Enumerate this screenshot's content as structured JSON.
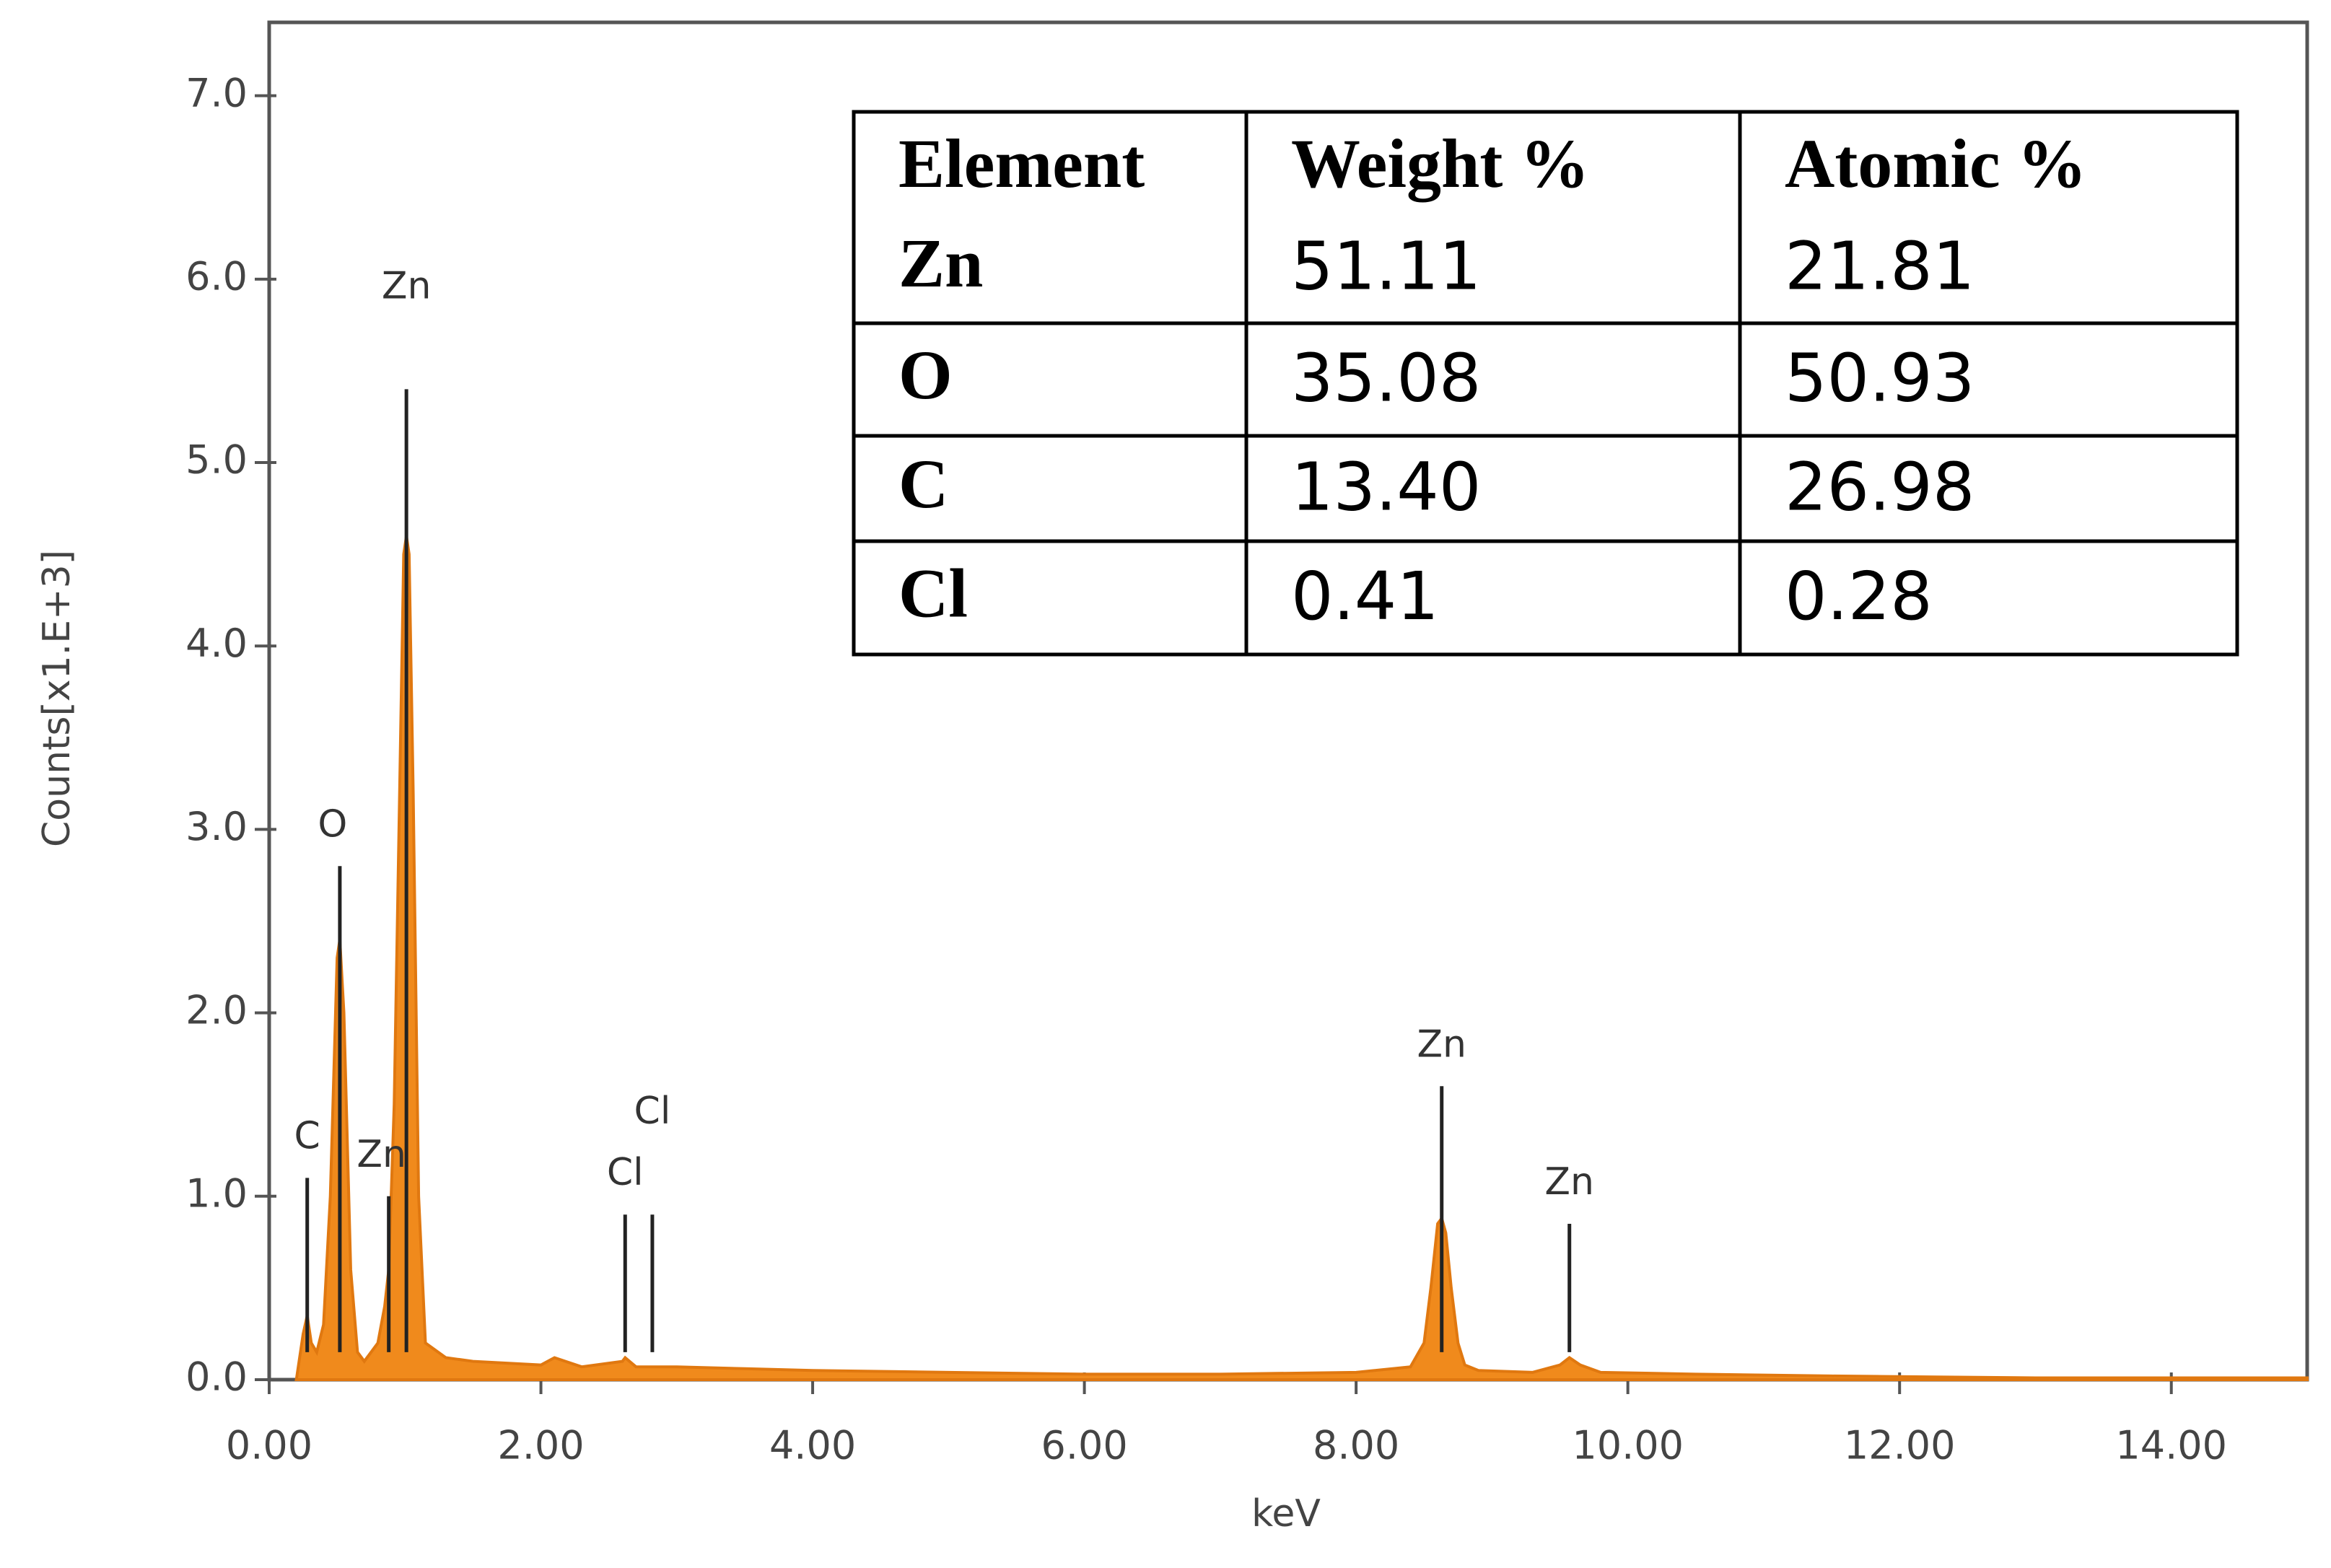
{
  "chart_data": {
    "type": "area",
    "x_label": "keV",
    "y_label": "Counts[x1.E+3]",
    "xlim": [
      0,
      15
    ],
    "ylim": [
      0,
      7.4
    ],
    "xticks": [
      {
        "value": 0,
        "label": "0.00"
      },
      {
        "value": 2,
        "label": "2.00"
      },
      {
        "value": 4,
        "label": "4.00"
      },
      {
        "value": 6,
        "label": "6.00"
      },
      {
        "value": 8,
        "label": "8.00"
      },
      {
        "value": 10,
        "label": "10.00"
      },
      {
        "value": 12,
        "label": "12.00"
      },
      {
        "value": 14,
        "label": "14.00"
      }
    ],
    "yticks": [
      {
        "value": 0,
        "label": "0.0"
      },
      {
        "value": 1,
        "label": "1.0"
      },
      {
        "value": 2,
        "label": "2.0"
      },
      {
        "value": 3,
        "label": "3.0"
      },
      {
        "value": 4,
        "label": "4.0"
      },
      {
        "value": 5,
        "label": "5.0"
      },
      {
        "value": 6,
        "label": "6.0"
      },
      {
        "value": 7,
        "label": "7.0"
      }
    ],
    "grid": false,
    "color": "#f08a1c",
    "x": [
      0.2,
      0.25,
      0.28,
      0.31,
      0.35,
      0.4,
      0.45,
      0.5,
      0.52,
      0.55,
      0.6,
      0.65,
      0.7,
      0.8,
      0.85,
      0.88,
      0.92,
      0.96,
      0.99,
      1.01,
      1.03,
      1.06,
      1.1,
      1.15,
      1.3,
      1.5,
      2.0,
      2.1,
      2.3,
      2.6,
      2.62,
      2.7,
      3.0,
      3.5,
      4.0,
      5.0,
      6.0,
      7.0,
      8.0,
      8.4,
      8.5,
      8.55,
      8.6,
      8.63,
      8.66,
      8.7,
      8.75,
      8.8,
      8.9,
      9.3,
      9.5,
      9.57,
      9.65,
      9.8,
      10.5,
      11.5,
      13,
      14,
      15
    ],
    "values": [
      0,
      0.25,
      0.35,
      0.2,
      0.15,
      0.3,
      1.0,
      2.3,
      2.4,
      2.0,
      0.6,
      0.15,
      0.1,
      0.2,
      0.4,
      0.6,
      1.5,
      3.2,
      4.5,
      4.6,
      4.5,
      3.2,
      1.0,
      0.2,
      0.12,
      0.1,
      0.08,
      0.12,
      0.07,
      0.1,
      0.12,
      0.07,
      0.07,
      0.06,
      0.05,
      0.04,
      0.03,
      0.03,
      0.04,
      0.07,
      0.2,
      0.5,
      0.85,
      0.88,
      0.8,
      0.5,
      0.2,
      0.08,
      0.05,
      0.04,
      0.08,
      0.12,
      0.08,
      0.04,
      0.03,
      0.02,
      0.01,
      0.01,
      0.01
    ],
    "annotations": [
      {
        "label": "C",
        "x": 0.28,
        "y": 1.1
      },
      {
        "label": "O",
        "x": 0.52,
        "y": 2.8
      },
      {
        "label": "Zn",
        "x": 0.88,
        "y": 1.0
      },
      {
        "label": "Zn",
        "x": 1.01,
        "y": 5.4
      },
      {
        "label": "Cl",
        "x": 2.62,
        "y": 0.9
      },
      {
        "label": "Cl",
        "x": 2.82,
        "y": 0.9
      },
      {
        "label": "Zn",
        "x": 8.63,
        "y": 1.6
      },
      {
        "label": "Zn",
        "x": 9.57,
        "y": 0.85
      }
    ],
    "table": {
      "columns": [
        "Element",
        "Weight %",
        "Atomic %"
      ],
      "rows": [
        [
          "Zn",
          "51.11",
          "21.81"
        ],
        [
          "O",
          "35.08",
          "50.93"
        ],
        [
          "C",
          "13.40",
          "26.98"
        ],
        [
          "Cl",
          "0.41",
          "0.28"
        ]
      ]
    }
  }
}
